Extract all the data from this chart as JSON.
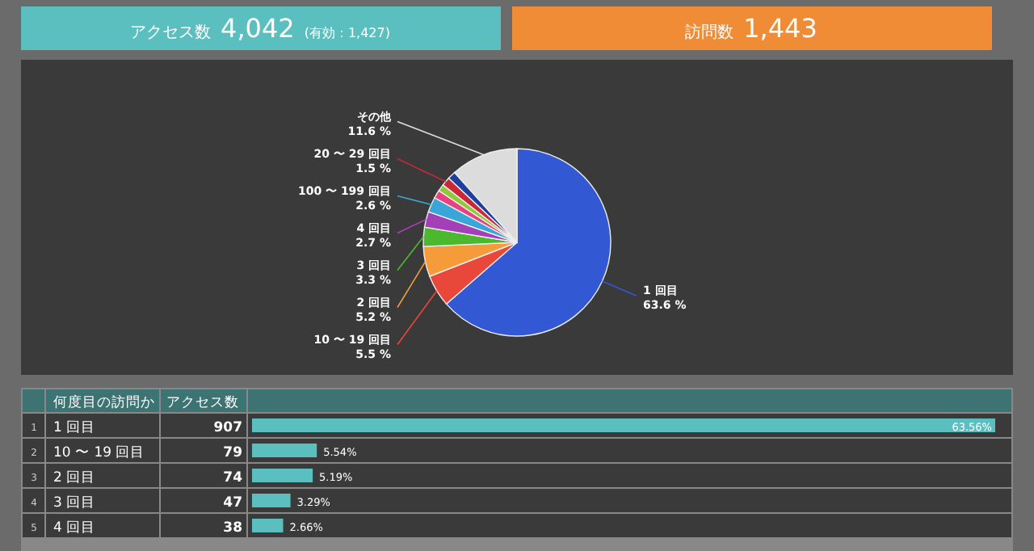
{
  "chart_data": [
    {
      "type": "other",
      "annotations": [
        "アクセス数",
        "4,042",
        "(有効：1,427)",
        "訪問数",
        "1,443"
      ]
    },
    {
      "type": "pie",
      "categories": [
        "1 回目",
        "10 〜 19 回目",
        "2 回目",
        "3 回目",
        "4 回目",
        "100 〜 199 回目",
        null,
        null,
        "20 〜 29 回目",
        null,
        "その他"
      ],
      "values": [
        63.6,
        5.5,
        5.2,
        3.3,
        2.7,
        2.6,
        1.4,
        1.2,
        1.5,
        1.4,
        11.6
      ],
      "value_labels": [
        "63.6 %",
        "5.5 %",
        "5.2 %",
        "3.3 %",
        "2.7 %",
        "2.6 %",
        null,
        null,
        "1.5 %",
        null,
        "11.6 %"
      ],
      "colors": [
        "#3358d4",
        "#e8473a",
        "#f59b3a",
        "#4cb82e",
        "#a340b8",
        "#3aa6d8",
        "#e8417f",
        "#8fc93a",
        "#c8283a",
        "#1f3f9f",
        "#dcdcdc"
      ]
    },
    {
      "type": "bar",
      "orientation": "horizontal",
      "categories": [
        "1 回目",
        "10 〜 19 回目",
        "2 回目",
        "3 回目",
        "4 回目"
      ],
      "values": [
        63.56,
        5.54,
        5.19,
        3.29,
        2.66
      ],
      "color": "#5bbfbf",
      "value_labels": [
        "63.56%",
        "5.54%",
        "5.19%",
        "3.29%",
        "2.66%"
      ],
      "annotations": [
        "何度目の訪問か",
        "アクセス数",
        "1",
        "2",
        "3",
        "4",
        "5",
        "907",
        "79",
        "74",
        "47",
        "38"
      ]
    }
  ]
}
